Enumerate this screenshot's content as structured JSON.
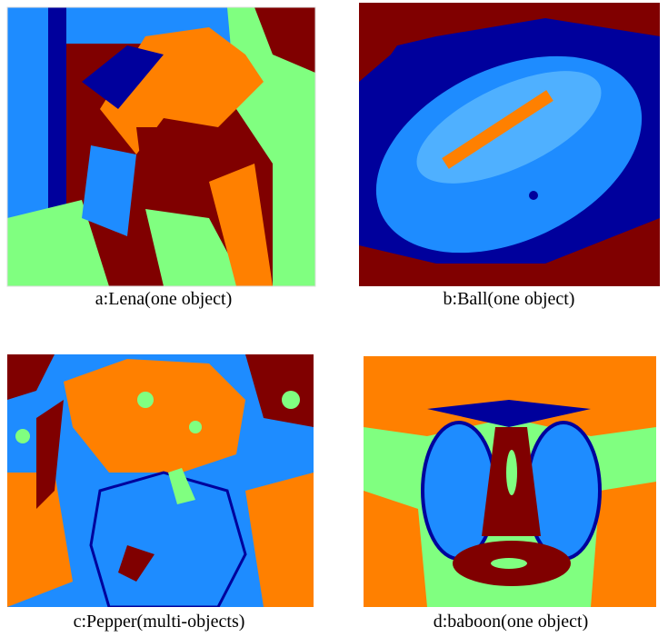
{
  "figures": [
    {
      "caption": "a:Lena(one object)"
    },
    {
      "caption": "b:Ball(one object)"
    },
    {
      "caption": "c:Pepper(multi-objects)"
    },
    {
      "caption": "d:baboon(one object)"
    }
  ]
}
